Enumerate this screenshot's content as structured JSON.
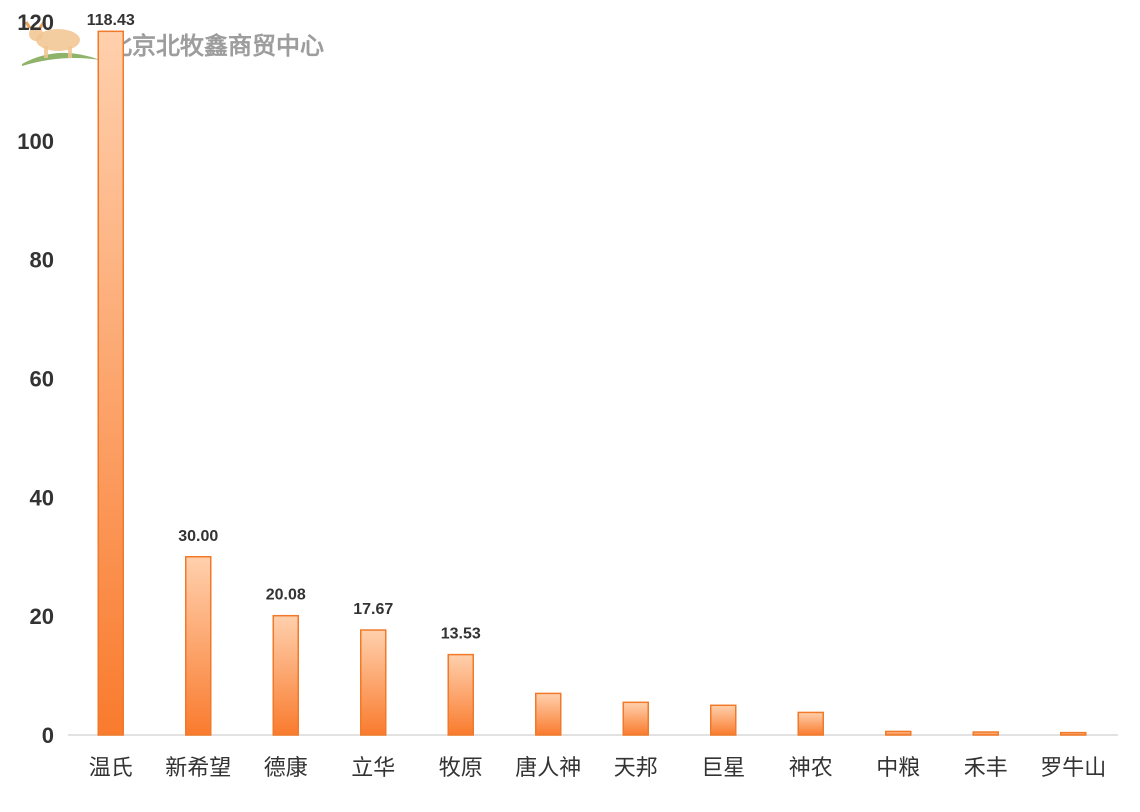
{
  "watermark": {
    "text": "北京北牧鑫商贸中心"
  },
  "chart_data": {
    "type": "bar",
    "categories": [
      "温氏",
      "新希望",
      "德康",
      "立华",
      "牧原",
      "唐人神",
      "天邦",
      "巨星",
      "神农",
      "中粮",
      "禾丰",
      "罗牛山"
    ],
    "values": [
      118.43,
      30.0,
      20.08,
      17.67,
      13.53,
      7.0,
      5.5,
      5.0,
      3.8,
      0.6,
      0.5,
      0.4
    ],
    "data_labels": [
      "118.43",
      "30.00",
      "20.08",
      "17.67",
      "13.53",
      null,
      null,
      null,
      null,
      null,
      null,
      null
    ],
    "yticks": [
      "0",
      "20",
      "40",
      "60",
      "80",
      "100",
      "120"
    ],
    "ylim": [
      0,
      120
    ],
    "title": "",
    "xlabel": "",
    "ylabel": "",
    "grid": false,
    "colors": {
      "bar_top": "#ffd0ad",
      "bar_bottom": "#f97b2e",
      "bar_stroke": "#f07a2a",
      "axis": "#d9d9d9"
    }
  }
}
